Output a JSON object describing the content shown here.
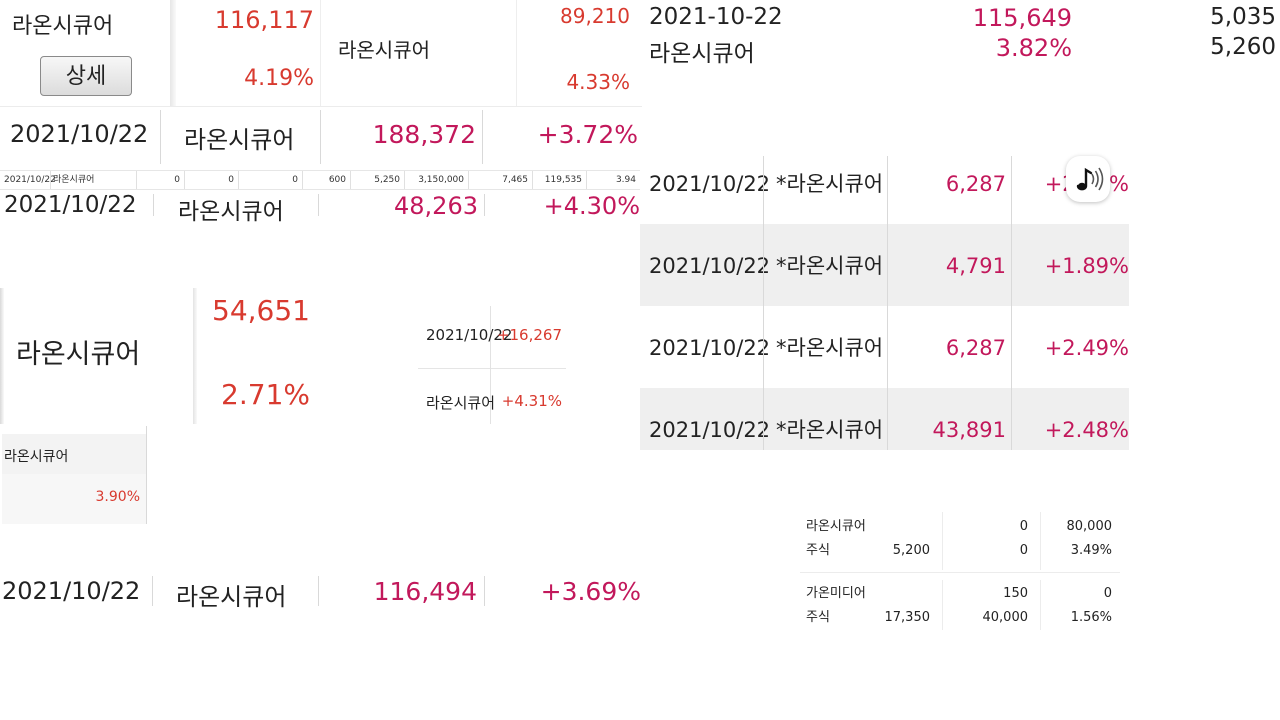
{
  "panel_a": {
    "name": "라온시큐어",
    "value": "116,117",
    "percent": "4.19%",
    "detail_button": "상세"
  },
  "panel_b": {
    "name": "라온시큐어",
    "value": "89,210",
    "percent": "4.33%"
  },
  "panel_c": {
    "date": "2021-10-22",
    "name": "라온시큐어",
    "value": "115,649",
    "percent": "3.82%",
    "col3_a": "5,035",
    "col3_b": "5,260"
  },
  "row_a": {
    "date": "2021/10/22",
    "name": "라온시큐어",
    "value": "188,372",
    "change": "+3.72%"
  },
  "strip": {
    "cells": [
      "2021/10/22",
      "라온시큐어",
      "0",
      "0",
      "0",
      "600",
      "5,250",
      "3,150,000",
      "7,465",
      "119,535",
      "3.94"
    ]
  },
  "row_b": {
    "date": "2021/10/22",
    "name": "라온시큐어",
    "value": "48,263",
    "change": "+4.30%"
  },
  "right_table": {
    "rows": [
      {
        "date": "2021/10/22",
        "name": "*라온시큐어",
        "value": "6,287",
        "change": "+2.49%"
      },
      {
        "date": "2021/10/22",
        "name": "*라온시큐어",
        "value": "4,791",
        "change": "+1.89%"
      },
      {
        "date": "2021/10/22",
        "name": "*라온시큐어",
        "value": "6,287",
        "change": "+2.49%"
      },
      {
        "date": "2021/10/22",
        "name": "*라온시큐어",
        "value": "43,891",
        "change": "+2.48%"
      }
    ],
    "sound_icon": "music-note-sound-icon"
  },
  "panel_d": {
    "name": "라온시큐어",
    "value": "54,651",
    "percent": "2.71%"
  },
  "panel_e": {
    "date": "2021/10/22",
    "change_value": "+16,267",
    "name": "라온시큐어",
    "change_pct": "+4.31%"
  },
  "panel_f": {
    "name": "라온시큐어",
    "percent": "3.90%"
  },
  "row_c": {
    "date": "2021/10/22",
    "name": "라온시큐어",
    "value": "116,494",
    "change": "+3.69%"
  },
  "card": {
    "items": [
      {
        "name": "라온시큐어",
        "type": "주식",
        "price": "5,200",
        "q1": "0",
        "q2": "0",
        "amount": "80,000",
        "pct": "3.49%"
      },
      {
        "name": "가온미디어",
        "type": "주식",
        "price": "17,350",
        "q1": "150",
        "q2": "40,000",
        "amount": "0",
        "pct": "1.56%"
      }
    ]
  }
}
